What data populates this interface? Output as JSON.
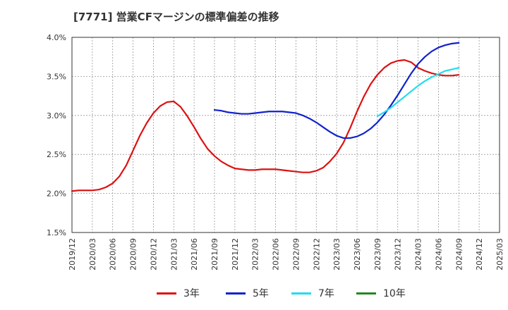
{
  "chart_data": {
    "type": "line",
    "title": "[7771]  営業CFマージンの標準偏差の推移",
    "xlabel": "",
    "ylabel": "",
    "ylim": [
      1.5,
      4.0
    ],
    "ytick_labels": [
      "1.5%",
      "2.0%",
      "2.5%",
      "3.0%",
      "3.5%",
      "4.0%"
    ],
    "ytick_values": [
      1.5,
      2.0,
      2.5,
      3.0,
      3.5,
      4.0
    ],
    "x_tick_labels": [
      "2019/12",
      "2020/03",
      "2020/06",
      "2020/09",
      "2020/12",
      "2021/03",
      "2021/06",
      "2021/09",
      "2021/12",
      "2022/03",
      "2022/06",
      "2022/09",
      "2022/12",
      "2023/03",
      "2023/06",
      "2023/09",
      "2023/12",
      "2024/03",
      "2024/06",
      "2024/09",
      "2024/12",
      "2025/03"
    ],
    "grid": true,
    "legend_position": "bottom",
    "series": [
      {
        "name": "3年",
        "color": "#dd1111",
        "points": [
          [
            "2019/12",
            2.03
          ],
          [
            "2020/01",
            2.04
          ],
          [
            "2020/02",
            2.04
          ],
          [
            "2020/03",
            2.04
          ],
          [
            "2020/04",
            2.05
          ],
          [
            "2020/05",
            2.08
          ],
          [
            "2020/06",
            2.13
          ],
          [
            "2020/07",
            2.22
          ],
          [
            "2020/08",
            2.36
          ],
          [
            "2020/09",
            2.55
          ],
          [
            "2020/10",
            2.74
          ],
          [
            "2020/11",
            2.9
          ],
          [
            "2020/12",
            3.03
          ],
          [
            "2021/01",
            3.12
          ],
          [
            "2021/02",
            3.17
          ],
          [
            "2021/03",
            3.18
          ],
          [
            "2021/04",
            3.11
          ],
          [
            "2021/05",
            2.99
          ],
          [
            "2021/06",
            2.85
          ],
          [
            "2021/07",
            2.7
          ],
          [
            "2021/08",
            2.57
          ],
          [
            "2021/09",
            2.48
          ],
          [
            "2021/10",
            2.41
          ],
          [
            "2021/11",
            2.36
          ],
          [
            "2021/12",
            2.32
          ],
          [
            "2022/01",
            2.31
          ],
          [
            "2022/02",
            2.3
          ],
          [
            "2022/03",
            2.3
          ],
          [
            "2022/04",
            2.31
          ],
          [
            "2022/05",
            2.31
          ],
          [
            "2022/06",
            2.31
          ],
          [
            "2022/07",
            2.3
          ],
          [
            "2022/08",
            2.29
          ],
          [
            "2022/09",
            2.28
          ],
          [
            "2022/10",
            2.27
          ],
          [
            "2022/11",
            2.27
          ],
          [
            "2022/12",
            2.29
          ],
          [
            "2023/01",
            2.33
          ],
          [
            "2023/02",
            2.41
          ],
          [
            "2023/03",
            2.51
          ],
          [
            "2023/04",
            2.65
          ],
          [
            "2023/05",
            2.84
          ],
          [
            "2023/06",
            3.05
          ],
          [
            "2023/07",
            3.24
          ],
          [
            "2023/08",
            3.4
          ],
          [
            "2023/09",
            3.52
          ],
          [
            "2023/10",
            3.61
          ],
          [
            "2023/11",
            3.67
          ],
          [
            "2023/12",
            3.7
          ],
          [
            "2024/01",
            3.71
          ],
          [
            "2024/02",
            3.68
          ],
          [
            "2024/03",
            3.61
          ],
          [
            "2024/04",
            3.57
          ],
          [
            "2024/05",
            3.54
          ],
          [
            "2024/06",
            3.52
          ],
          [
            "2024/07",
            3.51
          ],
          [
            "2024/08",
            3.51
          ],
          [
            "2024/09",
            3.52
          ]
        ]
      },
      {
        "name": "5年",
        "color": "#1122cc",
        "points": [
          [
            "2021/09",
            3.07
          ],
          [
            "2021/10",
            3.06
          ],
          [
            "2021/11",
            3.04
          ],
          [
            "2021/12",
            3.03
          ],
          [
            "2022/01",
            3.02
          ],
          [
            "2022/02",
            3.02
          ],
          [
            "2022/03",
            3.03
          ],
          [
            "2022/04",
            3.04
          ],
          [
            "2022/05",
            3.05
          ],
          [
            "2022/06",
            3.05
          ],
          [
            "2022/07",
            3.05
          ],
          [
            "2022/08",
            3.04
          ],
          [
            "2022/09",
            3.03
          ],
          [
            "2022/10",
            3.0
          ],
          [
            "2022/11",
            2.96
          ],
          [
            "2022/12",
            2.91
          ],
          [
            "2023/01",
            2.85
          ],
          [
            "2023/02",
            2.79
          ],
          [
            "2023/03",
            2.74
          ],
          [
            "2023/04",
            2.71
          ],
          [
            "2023/05",
            2.71
          ],
          [
            "2023/06",
            2.73
          ],
          [
            "2023/07",
            2.77
          ],
          [
            "2023/08",
            2.83
          ],
          [
            "2023/09",
            2.91
          ],
          [
            "2023/10",
            3.01
          ],
          [
            "2023/11",
            3.13
          ],
          [
            "2023/12",
            3.26
          ],
          [
            "2024/01",
            3.4
          ],
          [
            "2024/02",
            3.54
          ],
          [
            "2024/03",
            3.66
          ],
          [
            "2024/04",
            3.75
          ],
          [
            "2024/05",
            3.82
          ],
          [
            "2024/06",
            3.87
          ],
          [
            "2024/07",
            3.9
          ],
          [
            "2024/08",
            3.92
          ],
          [
            "2024/09",
            3.93
          ]
        ]
      },
      {
        "name": "7年",
        "color": "#22ddee",
        "points": [
          [
            "2023/09",
            2.99
          ],
          [
            "2023/10",
            3.04
          ],
          [
            "2023/11",
            3.1
          ],
          [
            "2023/12",
            3.17
          ],
          [
            "2024/01",
            3.24
          ],
          [
            "2024/02",
            3.31
          ],
          [
            "2024/03",
            3.38
          ],
          [
            "2024/04",
            3.44
          ],
          [
            "2024/05",
            3.49
          ],
          [
            "2024/06",
            3.53
          ],
          [
            "2024/07",
            3.57
          ],
          [
            "2024/08",
            3.59
          ],
          [
            "2024/09",
            3.61
          ]
        ]
      },
      {
        "name": "10年",
        "color": "#228822",
        "points": []
      }
    ]
  }
}
